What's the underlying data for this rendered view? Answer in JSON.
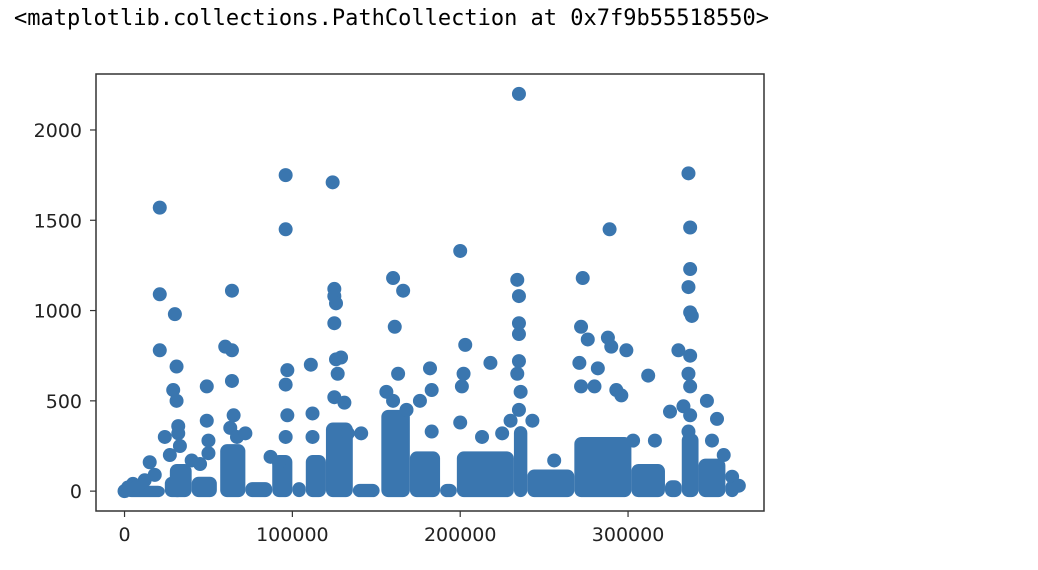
{
  "output_text": "<matplotlib.collections.PathCollection at 0x7f9b55518550>",
  "colors": {
    "point": "#3a76af",
    "axes": "#333333"
  },
  "chart_data": {
    "type": "scatter",
    "title": "",
    "xlabel": "",
    "ylabel": "",
    "xlim": [
      -17000,
      381000
    ],
    "ylim": [
      -110,
      2310
    ],
    "xticks": [
      0,
      100000,
      200000,
      300000
    ],
    "yticks": [
      0,
      500,
      1000,
      1500,
      2000
    ],
    "grid": false,
    "points": [
      [
        0,
        0
      ],
      [
        2000,
        20
      ],
      [
        5000,
        40
      ],
      [
        8000,
        30
      ],
      [
        12000,
        60
      ],
      [
        15000,
        160
      ],
      [
        18000,
        90
      ],
      [
        21000,
        1570
      ],
      [
        21000,
        1090
      ],
      [
        21000,
        780
      ],
      [
        24000,
        300
      ],
      [
        27000,
        200
      ],
      [
        30000,
        980
      ],
      [
        31000,
        690
      ],
      [
        29000,
        560
      ],
      [
        31000,
        500
      ],
      [
        32000,
        360
      ],
      [
        32000,
        320
      ],
      [
        33000,
        250
      ],
      [
        40000,
        170
      ],
      [
        45000,
        150
      ],
      [
        49000,
        580
      ],
      [
        49000,
        390
      ],
      [
        50000,
        280
      ],
      [
        50000,
        210
      ],
      [
        60000,
        800
      ],
      [
        64000,
        1110
      ],
      [
        64000,
        780
      ],
      [
        64000,
        610
      ],
      [
        65000,
        420
      ],
      [
        63000,
        350
      ],
      [
        67000,
        300
      ],
      [
        72000,
        320
      ],
      [
        87000,
        190
      ],
      [
        92000,
        160
      ],
      [
        96000,
        1750
      ],
      [
        96000,
        1450
      ],
      [
        97000,
        670
      ],
      [
        96000,
        590
      ],
      [
        97000,
        420
      ],
      [
        96000,
        300
      ],
      [
        111000,
        700
      ],
      [
        112000,
        430
      ],
      [
        112000,
        300
      ],
      [
        124000,
        1710
      ],
      [
        125000,
        1120
      ],
      [
        125000,
        1080
      ],
      [
        126000,
        1040
      ],
      [
        125000,
        930
      ],
      [
        126000,
        730
      ],
      [
        129000,
        740
      ],
      [
        127000,
        650
      ],
      [
        125000,
        520
      ],
      [
        131000,
        490
      ],
      [
        133000,
        320
      ],
      [
        141000,
        320
      ],
      [
        160000,
        1180
      ],
      [
        161000,
        910
      ],
      [
        166000,
        1110
      ],
      [
        156000,
        550
      ],
      [
        163000,
        650
      ],
      [
        160000,
        500
      ],
      [
        168000,
        450
      ],
      [
        176000,
        500
      ],
      [
        182000,
        680
      ],
      [
        183000,
        560
      ],
      [
        183000,
        330
      ],
      [
        200000,
        1330
      ],
      [
        203000,
        810
      ],
      [
        202000,
        650
      ],
      [
        201000,
        580
      ],
      [
        200000,
        380
      ],
      [
        213000,
        300
      ],
      [
        218000,
        710
      ],
      [
        225000,
        320
      ],
      [
        230000,
        390
      ],
      [
        234000,
        1170
      ],
      [
        235000,
        1080
      ],
      [
        235000,
        930
      ],
      [
        235000,
        870
      ],
      [
        235000,
        720
      ],
      [
        234000,
        650
      ],
      [
        236000,
        550
      ],
      [
        235000,
        450
      ],
      [
        235000,
        2200
      ],
      [
        243000,
        390
      ],
      [
        256000,
        170
      ],
      [
        271000,
        710
      ],
      [
        273000,
        1180
      ],
      [
        272000,
        910
      ],
      [
        272000,
        580
      ],
      [
        276000,
        840
      ],
      [
        282000,
        680
      ],
      [
        280000,
        580
      ],
      [
        288000,
        850
      ],
      [
        289000,
        1450
      ],
      [
        290000,
        800
      ],
      [
        293000,
        560
      ],
      [
        296000,
        530
      ],
      [
        299000,
        780
      ],
      [
        303000,
        280
      ],
      [
        312000,
        640
      ],
      [
        316000,
        280
      ],
      [
        325000,
        440
      ],
      [
        330000,
        780
      ],
      [
        333000,
        470
      ],
      [
        336000,
        1760
      ],
      [
        337000,
        1460
      ],
      [
        337000,
        1230
      ],
      [
        336000,
        1130
      ],
      [
        337000,
        990
      ],
      [
        338000,
        970
      ],
      [
        337000,
        750
      ],
      [
        336000,
        650
      ],
      [
        337000,
        580
      ],
      [
        337000,
        420
      ],
      [
        336000,
        330
      ],
      [
        347000,
        500
      ],
      [
        350000,
        280
      ],
      [
        353000,
        400
      ],
      [
        357000,
        200
      ],
      [
        362000,
        80
      ],
      [
        366000,
        30
      ]
    ],
    "density_bands": [
      [
        0,
        24000,
        0,
        30
      ],
      [
        24000,
        36000,
        0,
        80
      ],
      [
        27000,
        40000,
        0,
        150
      ],
      [
        40000,
        55000,
        0,
        80
      ],
      [
        57000,
        72000,
        0,
        260
      ],
      [
        72000,
        88000,
        0,
        50
      ],
      [
        88000,
        100000,
        0,
        200
      ],
      [
        100000,
        108000,
        0,
        50
      ],
      [
        108000,
        120000,
        0,
        200
      ],
      [
        120000,
        136000,
        0,
        380
      ],
      [
        136000,
        152000,
        0,
        40
      ],
      [
        153000,
        170000,
        0,
        450
      ],
      [
        170000,
        188000,
        0,
        220
      ],
      [
        188000,
        198000,
        0,
        40
      ],
      [
        198000,
        232000,
        0,
        220
      ],
      [
        232000,
        240000,
        0,
        360
      ],
      [
        240000,
        268000,
        0,
        120
      ],
      [
        268000,
        302000,
        0,
        300
      ],
      [
        302000,
        322000,
        0,
        150
      ],
      [
        322000,
        332000,
        0,
        60
      ],
      [
        332000,
        342000,
        0,
        320
      ],
      [
        342000,
        358000,
        0,
        180
      ],
      [
        358000,
        366000,
        0,
        60
      ]
    ]
  }
}
